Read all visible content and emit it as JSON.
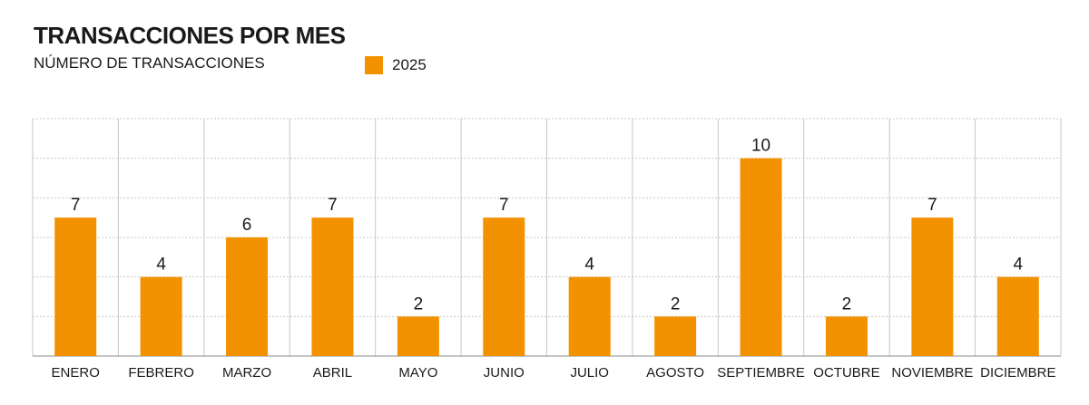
{
  "header": {
    "title": "TRANSACCIONES POR MES",
    "subtitle": "NÚMERO DE TRANSACCIONES"
  },
  "legend": {
    "label": "2025"
  },
  "colors": {
    "bar": "#F39200",
    "grid": "#c8c8c8",
    "axis": "#888888"
  },
  "chart_data": {
    "type": "bar",
    "title": "TRANSACCIONES POR MES",
    "subtitle": "NÚMERO DE TRANSACCIONES",
    "xlabel": "",
    "ylabel": "",
    "categories": [
      "ENERO",
      "FEBRERO",
      "MARZO",
      "ABRIL",
      "MAYO",
      "JUNIO",
      "JULIO",
      "AGOSTO",
      "SEPTIEMBRE",
      "OCTUBRE",
      "NOVIEMBRE",
      "DICIEMBRE"
    ],
    "series": [
      {
        "name": "2025",
        "values": [
          7,
          4,
          6,
          7,
          2,
          7,
          4,
          2,
          10,
          2,
          7,
          4
        ]
      }
    ],
    "ylim": [
      0,
      12
    ],
    "grid": true,
    "legend_position": "top"
  }
}
